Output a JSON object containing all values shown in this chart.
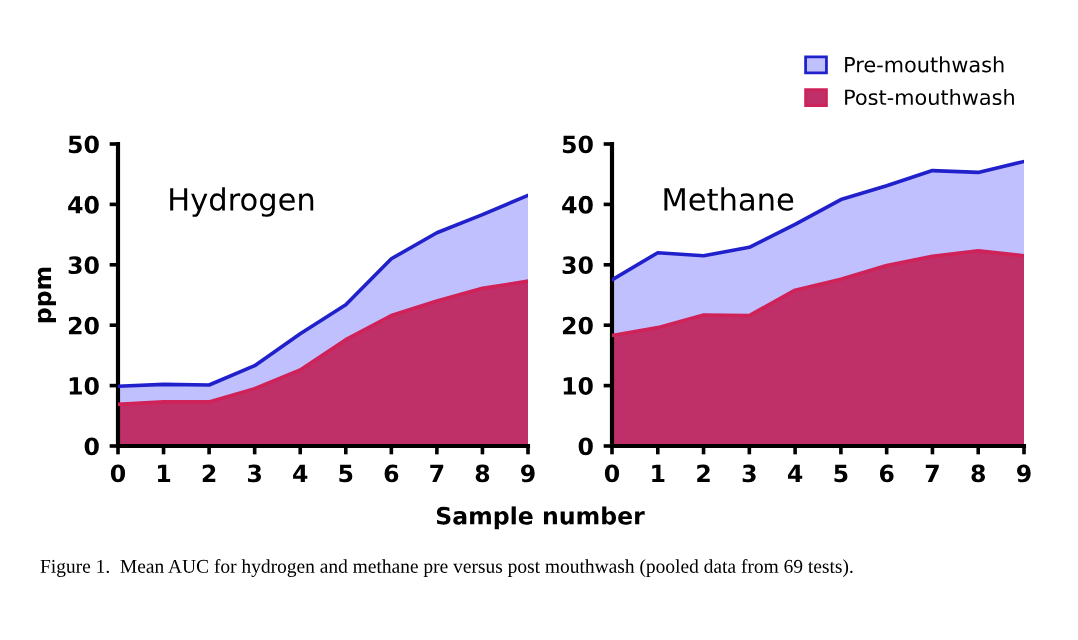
{
  "chart_data": [
    {
      "type": "area",
      "title": "Hydrogen",
      "xlabel": "Sample number",
      "ylabel": "ppm",
      "x": [
        0,
        1,
        2,
        3,
        4,
        5,
        6,
        7,
        8,
        9
      ],
      "xlim": [
        0,
        9
      ],
      "xticks": [
        0,
        1,
        2,
        3,
        4,
        5,
        6,
        7,
        8,
        9
      ],
      "ylim": [
        0,
        50
      ],
      "yticks": [
        0,
        10,
        20,
        30,
        40,
        50
      ],
      "grid": false,
      "legend": "top right",
      "series": [
        {
          "name": "Pre-mouthwash",
          "color": "#c0c0ff",
          "values": [
            9.9,
            10.2,
            10.1,
            13.3,
            18.6,
            23.4,
            31,
            35.3,
            38.3,
            41.5
          ]
        },
        {
          "name": "Post-mouthwash",
          "color": "#c03068",
          "values": [
            6.9,
            7.3,
            7.3,
            9.5,
            12.6,
            17.6,
            21.6,
            24,
            26.1,
            27.3
          ]
        }
      ],
      "annotations": [
        "Figure 1.  Mean AUC for hydrogen and methane pre versus post mouthwash (pooled data from 69 tests)."
      ]
    },
    {
      "type": "area",
      "title": "Methane",
      "x": [
        0,
        1,
        2,
        3,
        4,
        5,
        6,
        7,
        8,
        9
      ],
      "xlim": [
        0,
        9
      ],
      "xticks": [
        0,
        1,
        2,
        3,
        4,
        5,
        6,
        7,
        8,
        9
      ],
      "ylim": [
        0,
        50
      ],
      "yticks": [
        0,
        10,
        20,
        30,
        40,
        50
      ],
      "grid": false,
      "series": [
        {
          "color": "#c0c0ff",
          "values": [
            27.5,
            32,
            31.5,
            32.9,
            36.7,
            40.8,
            43.1,
            45.6,
            45.3,
            47.1
          ]
        },
        {
          "color": "#c03068",
          "values": [
            18.3,
            19.6,
            21.7,
            21.6,
            25.8,
            27.6,
            29.9,
            31.4,
            32.3,
            31.5
          ]
        }
      ]
    }
  ]
}
